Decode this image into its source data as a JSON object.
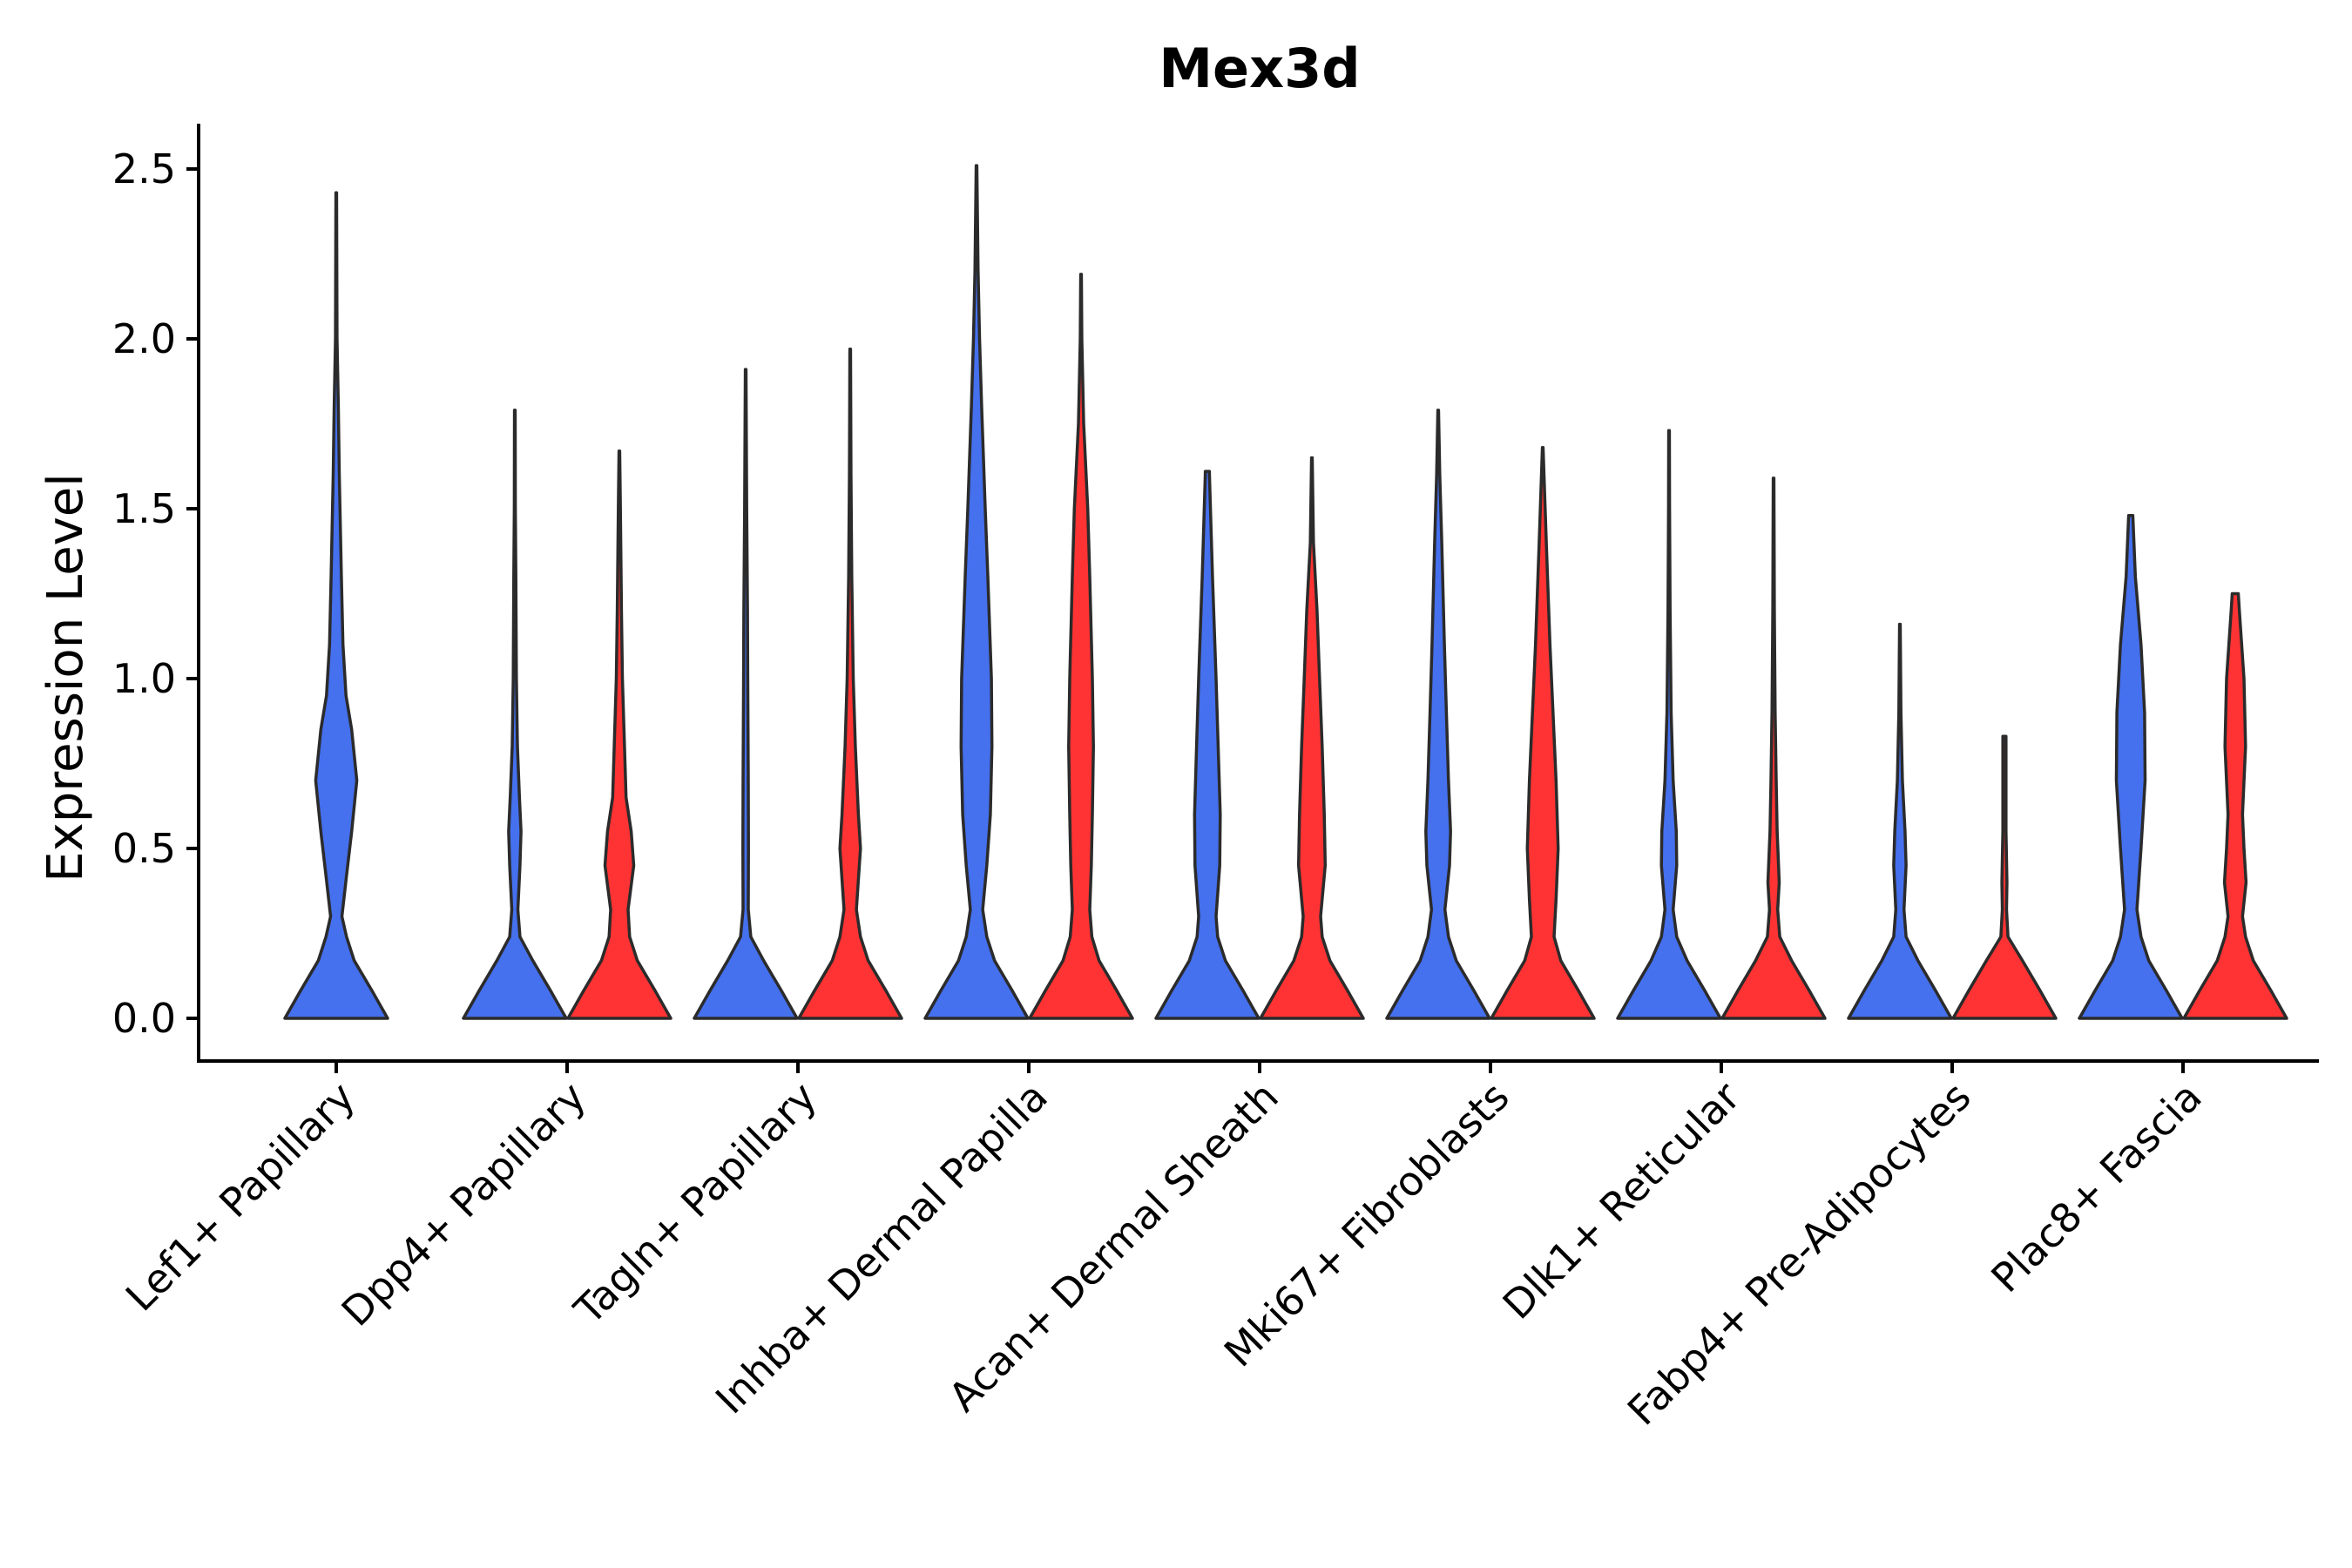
{
  "chart_data": {
    "type": "violin",
    "title": "Mex3d",
    "xlabel": "",
    "ylabel": "Expression Level",
    "ylim": [
      -0.12,
      2.62
    ],
    "yticks": [
      0.0,
      0.5,
      1.0,
      1.5,
      2.0,
      2.5
    ],
    "ytick_labels": [
      "0.0",
      "0.5",
      "1.0",
      "1.5",
      "2.0",
      "2.5"
    ],
    "categories": [
      "Lef1+ Papillary",
      "Dpp4+ Papillary",
      "Tagln+ Papillary",
      "Inhba+ Dermal Papilla",
      "Acan+ Dermal Sheath",
      "Mki67+ Fibroblasts",
      "Dlk1+ Reticular",
      "Fabp4+ Pre-Adipocytes",
      "Plac8+ Fascia"
    ],
    "series_colors": {
      "blue": "#4570ee",
      "red": "#ff3333"
    },
    "series": [
      {
        "name": "blue",
        "violins": [
          {
            "category": "Lef1+ Papillary",
            "ymax": 2.43,
            "profile": [
              [
                0,
                1.0
              ],
              [
                0.08,
                0.7
              ],
              [
                0.17,
                0.35
              ],
              [
                0.24,
                0.2
              ],
              [
                0.3,
                0.11
              ],
              [
                0.42,
                0.2
              ],
              [
                0.55,
                0.3
              ],
              [
                0.7,
                0.4
              ],
              [
                0.85,
                0.3
              ],
              [
                0.95,
                0.19
              ],
              [
                1.1,
                0.13
              ],
              [
                1.3,
                0.1
              ],
              [
                1.6,
                0.06
              ],
              [
                1.8,
                0.04
              ],
              [
                2.0,
                0.015
              ],
              [
                2.43,
                0.006
              ]
            ]
          },
          {
            "category": "Dpp4+ Papillary",
            "ymax": 1.79,
            "profile": [
              [
                0,
                1.0
              ],
              [
                0.08,
                0.7
              ],
              [
                0.17,
                0.35
              ],
              [
                0.24,
                0.1
              ],
              [
                0.32,
                0.06
              ],
              [
                0.45,
                0.1
              ],
              [
                0.55,
                0.12
              ],
              [
                0.65,
                0.09
              ],
              [
                0.8,
                0.05
              ],
              [
                1.0,
                0.03
              ],
              [
                1.3,
                0.02
              ],
              [
                1.5,
                0.01
              ],
              [
                1.79,
                0.006
              ]
            ]
          },
          {
            "category": "Tagln+ Papillary",
            "ymax": 1.91,
            "profile": [
              [
                0,
                1.0
              ],
              [
                0.08,
                0.7
              ],
              [
                0.17,
                0.35
              ],
              [
                0.24,
                0.1
              ],
              [
                0.32,
                0.05
              ],
              [
                0.5,
                0.055
              ],
              [
                0.7,
                0.05
              ],
              [
                1.0,
                0.04
              ],
              [
                1.2,
                0.035
              ],
              [
                1.5,
                0.02
              ],
              [
                1.91,
                0.006
              ]
            ]
          },
          {
            "category": "Inhba+ Dermal Papilla",
            "ymax": 2.51,
            "profile": [
              [
                0,
                1.0
              ],
              [
                0.08,
                0.7
              ],
              [
                0.17,
                0.35
              ],
              [
                0.24,
                0.2
              ],
              [
                0.32,
                0.12
              ],
              [
                0.45,
                0.2
              ],
              [
                0.6,
                0.27
              ],
              [
                0.8,
                0.3
              ],
              [
                1.0,
                0.29
              ],
              [
                1.3,
                0.22
              ],
              [
                1.5,
                0.17
              ],
              [
                1.8,
                0.1
              ],
              [
                2.0,
                0.06
              ],
              [
                2.2,
                0.03
              ],
              [
                2.51,
                0.006
              ]
            ]
          },
          {
            "category": "Acan+ Dermal Sheath",
            "ymax": 1.61,
            "profile": [
              [
                0,
                1.0
              ],
              [
                0.08,
                0.7
              ],
              [
                0.17,
                0.35
              ],
              [
                0.24,
                0.2
              ],
              [
                0.3,
                0.17
              ],
              [
                0.45,
                0.24
              ],
              [
                0.6,
                0.25
              ],
              [
                0.8,
                0.21
              ],
              [
                1.0,
                0.17
              ],
              [
                1.3,
                0.1
              ],
              [
                1.6,
                0.04
              ],
              [
                1.61,
                0.04
              ]
            ]
          },
          {
            "category": "Mki67+ Fibroblasts",
            "ymax": 1.79,
            "profile": [
              [
                0,
                1.0
              ],
              [
                0.08,
                0.7
              ],
              [
                0.17,
                0.35
              ],
              [
                0.24,
                0.2
              ],
              [
                0.32,
                0.13
              ],
              [
                0.45,
                0.22
              ],
              [
                0.55,
                0.24
              ],
              [
                0.7,
                0.2
              ],
              [
                0.9,
                0.16
              ],
              [
                1.1,
                0.12
              ],
              [
                1.4,
                0.07
              ],
              [
                1.6,
                0.03
              ],
              [
                1.79,
                0.006
              ]
            ]
          },
          {
            "category": "Dlk1+ Reticular",
            "ymax": 1.73,
            "profile": [
              [
                0,
                1.0
              ],
              [
                0.08,
                0.7
              ],
              [
                0.17,
                0.35
              ],
              [
                0.24,
                0.15
              ],
              [
                0.32,
                0.08
              ],
              [
                0.45,
                0.15
              ],
              [
                0.55,
                0.14
              ],
              [
                0.7,
                0.08
              ],
              [
                0.9,
                0.04
              ],
              [
                1.2,
                0.02
              ],
              [
                1.5,
                0.01
              ],
              [
                1.73,
                0.006
              ]
            ]
          },
          {
            "category": "Fabp4+ Pre-Adipocytes",
            "ymax": 1.16,
            "profile": [
              [
                0,
                1.0
              ],
              [
                0.08,
                0.7
              ],
              [
                0.17,
                0.35
              ],
              [
                0.24,
                0.12
              ],
              [
                0.32,
                0.08
              ],
              [
                0.45,
                0.12
              ],
              [
                0.55,
                0.1
              ],
              [
                0.7,
                0.05
              ],
              [
                0.9,
                0.02
              ],
              [
                1.16,
                0.006
              ]
            ]
          },
          {
            "category": "Plac8+ Fascia",
            "ymax": 1.48,
            "profile": [
              [
                0,
                1.0
              ],
              [
                0.08,
                0.7
              ],
              [
                0.17,
                0.35
              ],
              [
                0.24,
                0.2
              ],
              [
                0.32,
                0.12
              ],
              [
                0.5,
                0.2
              ],
              [
                0.7,
                0.28
              ],
              [
                0.9,
                0.27
              ],
              [
                1.1,
                0.2
              ],
              [
                1.3,
                0.09
              ],
              [
                1.48,
                0.04
              ]
            ]
          }
        ]
      },
      {
        "name": "red",
        "violins": [
          {
            "category": "Dpp4+ Papillary",
            "ymax": 1.67,
            "profile": [
              [
                0,
                1.0
              ],
              [
                0.08,
                0.7
              ],
              [
                0.17,
                0.35
              ],
              [
                0.24,
                0.2
              ],
              [
                0.32,
                0.17
              ],
              [
                0.45,
                0.28
              ],
              [
                0.55,
                0.23
              ],
              [
                0.65,
                0.13
              ],
              [
                0.8,
                0.1
              ],
              [
                1.0,
                0.06
              ],
              [
                1.2,
                0.04
              ],
              [
                1.5,
                0.02
              ],
              [
                1.67,
                0.006
              ]
            ]
          },
          {
            "category": "Tagln+ Papillary",
            "ymax": 1.97,
            "profile": [
              [
                0,
                1.0
              ],
              [
                0.08,
                0.7
              ],
              [
                0.17,
                0.35
              ],
              [
                0.24,
                0.2
              ],
              [
                0.32,
                0.12
              ],
              [
                0.5,
                0.2
              ],
              [
                0.6,
                0.16
              ],
              [
                0.8,
                0.1
              ],
              [
                1.0,
                0.06
              ],
              [
                1.3,
                0.03
              ],
              [
                1.6,
                0.015
              ],
              [
                1.97,
                0.006
              ]
            ]
          },
          {
            "category": "Inhba+ Dermal Papilla",
            "ymax": 2.19,
            "profile": [
              [
                0,
                1.0
              ],
              [
                0.08,
                0.7
              ],
              [
                0.17,
                0.35
              ],
              [
                0.24,
                0.21
              ],
              [
                0.32,
                0.17
              ],
              [
                0.45,
                0.2
              ],
              [
                0.6,
                0.22
              ],
              [
                0.8,
                0.24
              ],
              [
                1.0,
                0.22
              ],
              [
                1.3,
                0.17
              ],
              [
                1.5,
                0.13
              ],
              [
                1.75,
                0.05
              ],
              [
                2.0,
                0.015
              ],
              [
                2.19,
                0.006
              ]
            ]
          },
          {
            "category": "Acan+ Dermal Sheath",
            "ymax": 1.65,
            "profile": [
              [
                0,
                1.0
              ],
              [
                0.08,
                0.7
              ],
              [
                0.17,
                0.35
              ],
              [
                0.24,
                0.2
              ],
              [
                0.3,
                0.17
              ],
              [
                0.45,
                0.26
              ],
              [
                0.6,
                0.24
              ],
              [
                0.8,
                0.2
              ],
              [
                1.0,
                0.15
              ],
              [
                1.2,
                0.1
              ],
              [
                1.4,
                0.03
              ],
              [
                1.65,
                0.006
              ]
            ]
          },
          {
            "category": "Mki67+ Fibroblasts",
            "ymax": 1.68,
            "profile": [
              [
                0,
                1.0
              ],
              [
                0.08,
                0.7
              ],
              [
                0.17,
                0.35
              ],
              [
                0.24,
                0.22
              ],
              [
                0.35,
                0.26
              ],
              [
                0.5,
                0.3
              ],
              [
                0.7,
                0.26
              ],
              [
                0.9,
                0.2
              ],
              [
                1.1,
                0.14
              ],
              [
                1.4,
                0.07
              ],
              [
                1.68,
                0.006
              ]
            ]
          },
          {
            "category": "Dlk1+ Reticular",
            "ymax": 1.59,
            "profile": [
              [
                0,
                1.0
              ],
              [
                0.08,
                0.7
              ],
              [
                0.17,
                0.35
              ],
              [
                0.24,
                0.12
              ],
              [
                0.32,
                0.08
              ],
              [
                0.4,
                0.11
              ],
              [
                0.55,
                0.07
              ],
              [
                0.7,
                0.05
              ],
              [
                0.9,
                0.03
              ],
              [
                1.2,
                0.015
              ],
              [
                1.59,
                0.006
              ]
            ]
          },
          {
            "category": "Fabp4+ Pre-Adipocytes",
            "ymax": 0.83,
            "profile": [
              [
                0,
                1.0
              ],
              [
                0.08,
                0.7
              ],
              [
                0.17,
                0.35
              ],
              [
                0.24,
                0.07
              ],
              [
                0.32,
                0.04
              ],
              [
                0.4,
                0.05
              ],
              [
                0.55,
                0.03
              ],
              [
                0.7,
                0.03
              ],
              [
                0.83,
                0.03
              ]
            ]
          },
          {
            "category": "Plac8+ Fascia",
            "ymax": 1.25,
            "profile": [
              [
                0,
                1.0
              ],
              [
                0.08,
                0.7
              ],
              [
                0.17,
                0.35
              ],
              [
                0.24,
                0.2
              ],
              [
                0.3,
                0.14
              ],
              [
                0.4,
                0.21
              ],
              [
                0.5,
                0.17
              ],
              [
                0.6,
                0.14
              ],
              [
                0.8,
                0.2
              ],
              [
                1.0,
                0.17
              ],
              [
                1.2,
                0.08
              ],
              [
                1.25,
                0.06
              ]
            ]
          }
        ]
      }
    ]
  }
}
